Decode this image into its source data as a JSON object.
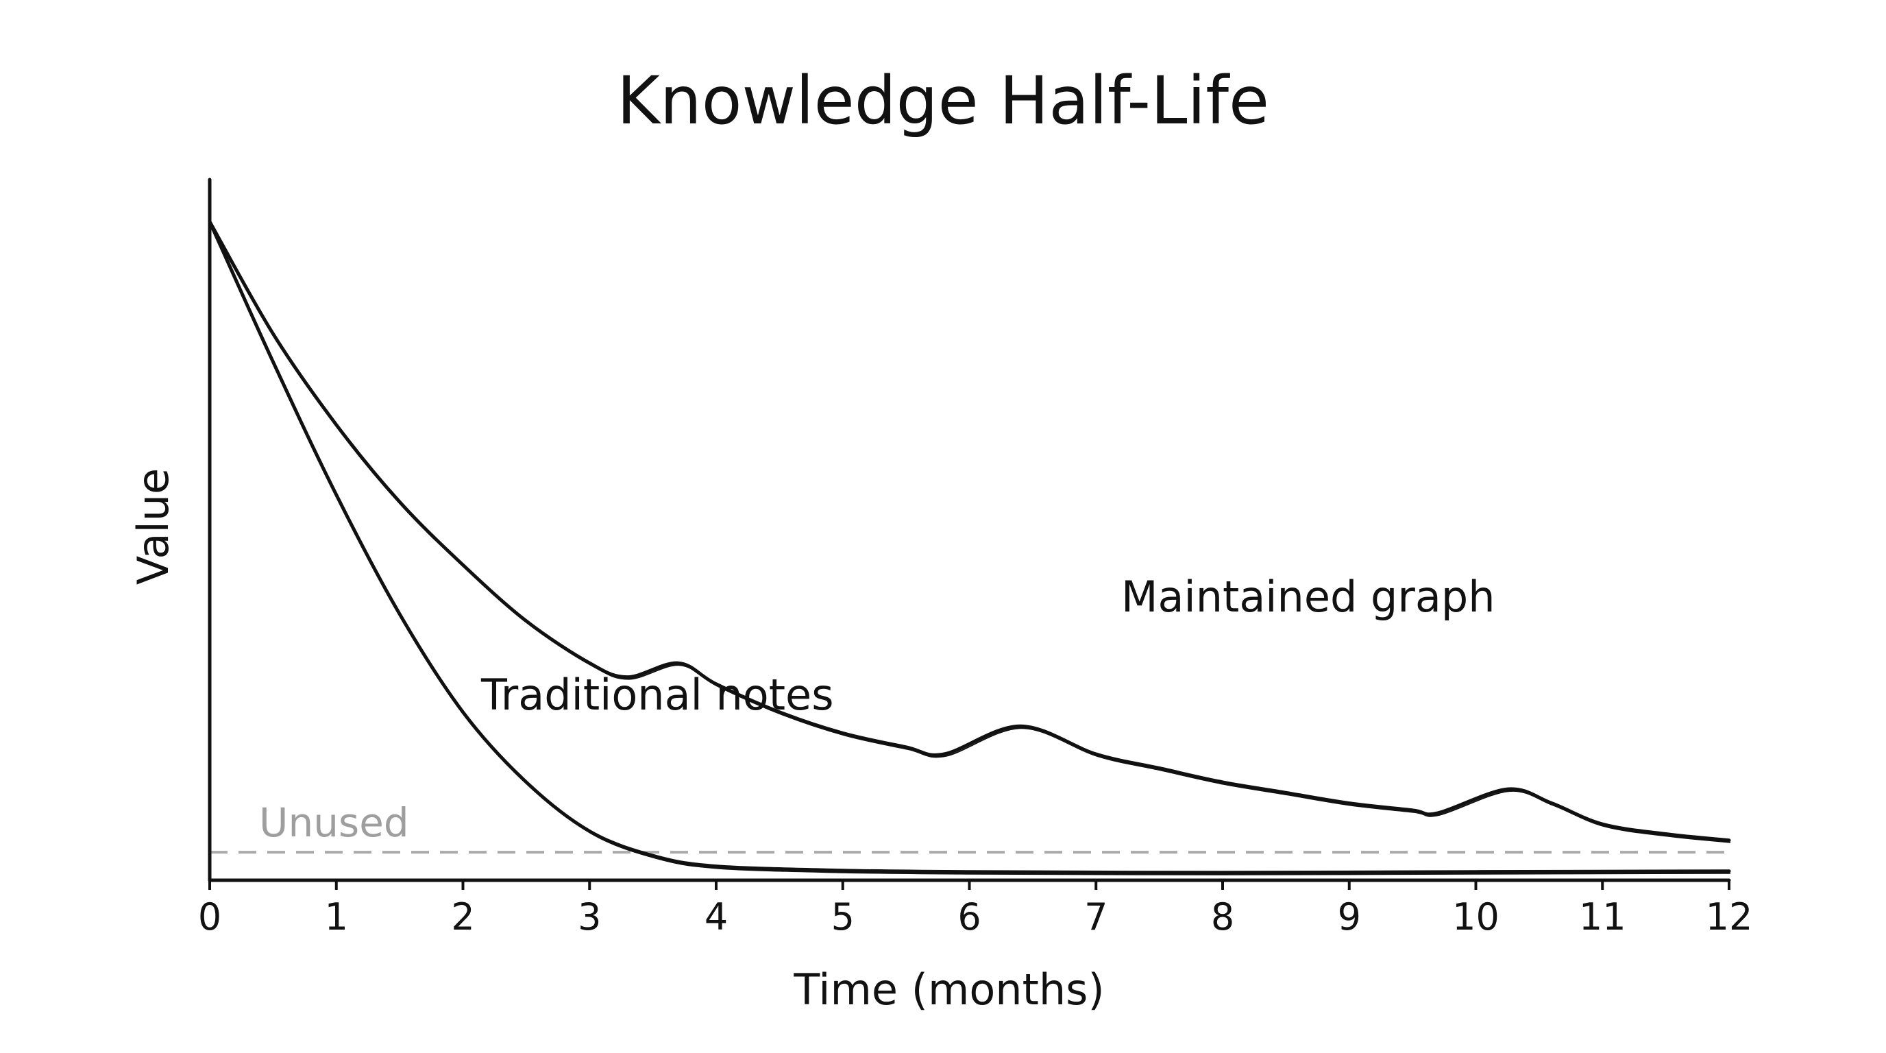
{
  "chart_data": {
    "type": "line",
    "title": "Knowledge Half-Life",
    "xlabel": "Time (months)",
    "ylabel": "Value",
    "xlim": [
      0,
      12
    ],
    "ylim": [
      0,
      1
    ],
    "x_ticks": [
      "0",
      "1",
      "2",
      "3",
      "4",
      "5",
      "6",
      "7",
      "8",
      "9",
      "10",
      "11",
      "12"
    ],
    "y_ticks": [],
    "grid": false,
    "legend": "none",
    "series": [
      {
        "name": "Maintained graph",
        "color": "#111111",
        "points": [
          [
            0,
            0.94
          ],
          [
            0.5,
            0.78
          ],
          [
            1,
            0.65
          ],
          [
            1.5,
            0.54
          ],
          [
            2,
            0.45
          ],
          [
            2.5,
            0.37
          ],
          [
            3,
            0.31
          ],
          [
            3.3,
            0.29
          ],
          [
            3.7,
            0.31
          ],
          [
            4,
            0.28
          ],
          [
            4.5,
            0.24
          ],
          [
            5,
            0.21
          ],
          [
            5.5,
            0.19
          ],
          [
            5.8,
            0.18
          ],
          [
            6.4,
            0.22
          ],
          [
            7,
            0.18
          ],
          [
            7.5,
            0.16
          ],
          [
            8,
            0.14
          ],
          [
            8.5,
            0.125
          ],
          [
            9,
            0.11
          ],
          [
            9.5,
            0.1
          ],
          [
            9.7,
            0.096
          ],
          [
            10.25,
            0.13
          ],
          [
            10.6,
            0.11
          ],
          [
            11,
            0.08
          ],
          [
            11.5,
            0.066
          ],
          [
            12,
            0.057
          ]
        ]
      },
      {
        "name": "Traditional notes",
        "color": "#111111",
        "points": [
          [
            0,
            0.94
          ],
          [
            0.5,
            0.74
          ],
          [
            1,
            0.55
          ],
          [
            1.5,
            0.38
          ],
          [
            2,
            0.24
          ],
          [
            2.5,
            0.14
          ],
          [
            3,
            0.07
          ],
          [
            3.5,
            0.035
          ],
          [
            4,
            0.02
          ],
          [
            5,
            0.014
          ],
          [
            6,
            0.012
          ],
          [
            8,
            0.011
          ],
          [
            10,
            0.012
          ],
          [
            12,
            0.013
          ]
        ]
      }
    ],
    "reference_line": {
      "label": "Unused",
      "y": 0.04,
      "style": "dashed",
      "color": "#aaaaaa"
    },
    "annotations": [
      "Maintained graph",
      "Traditional notes",
      "Unused"
    ]
  }
}
